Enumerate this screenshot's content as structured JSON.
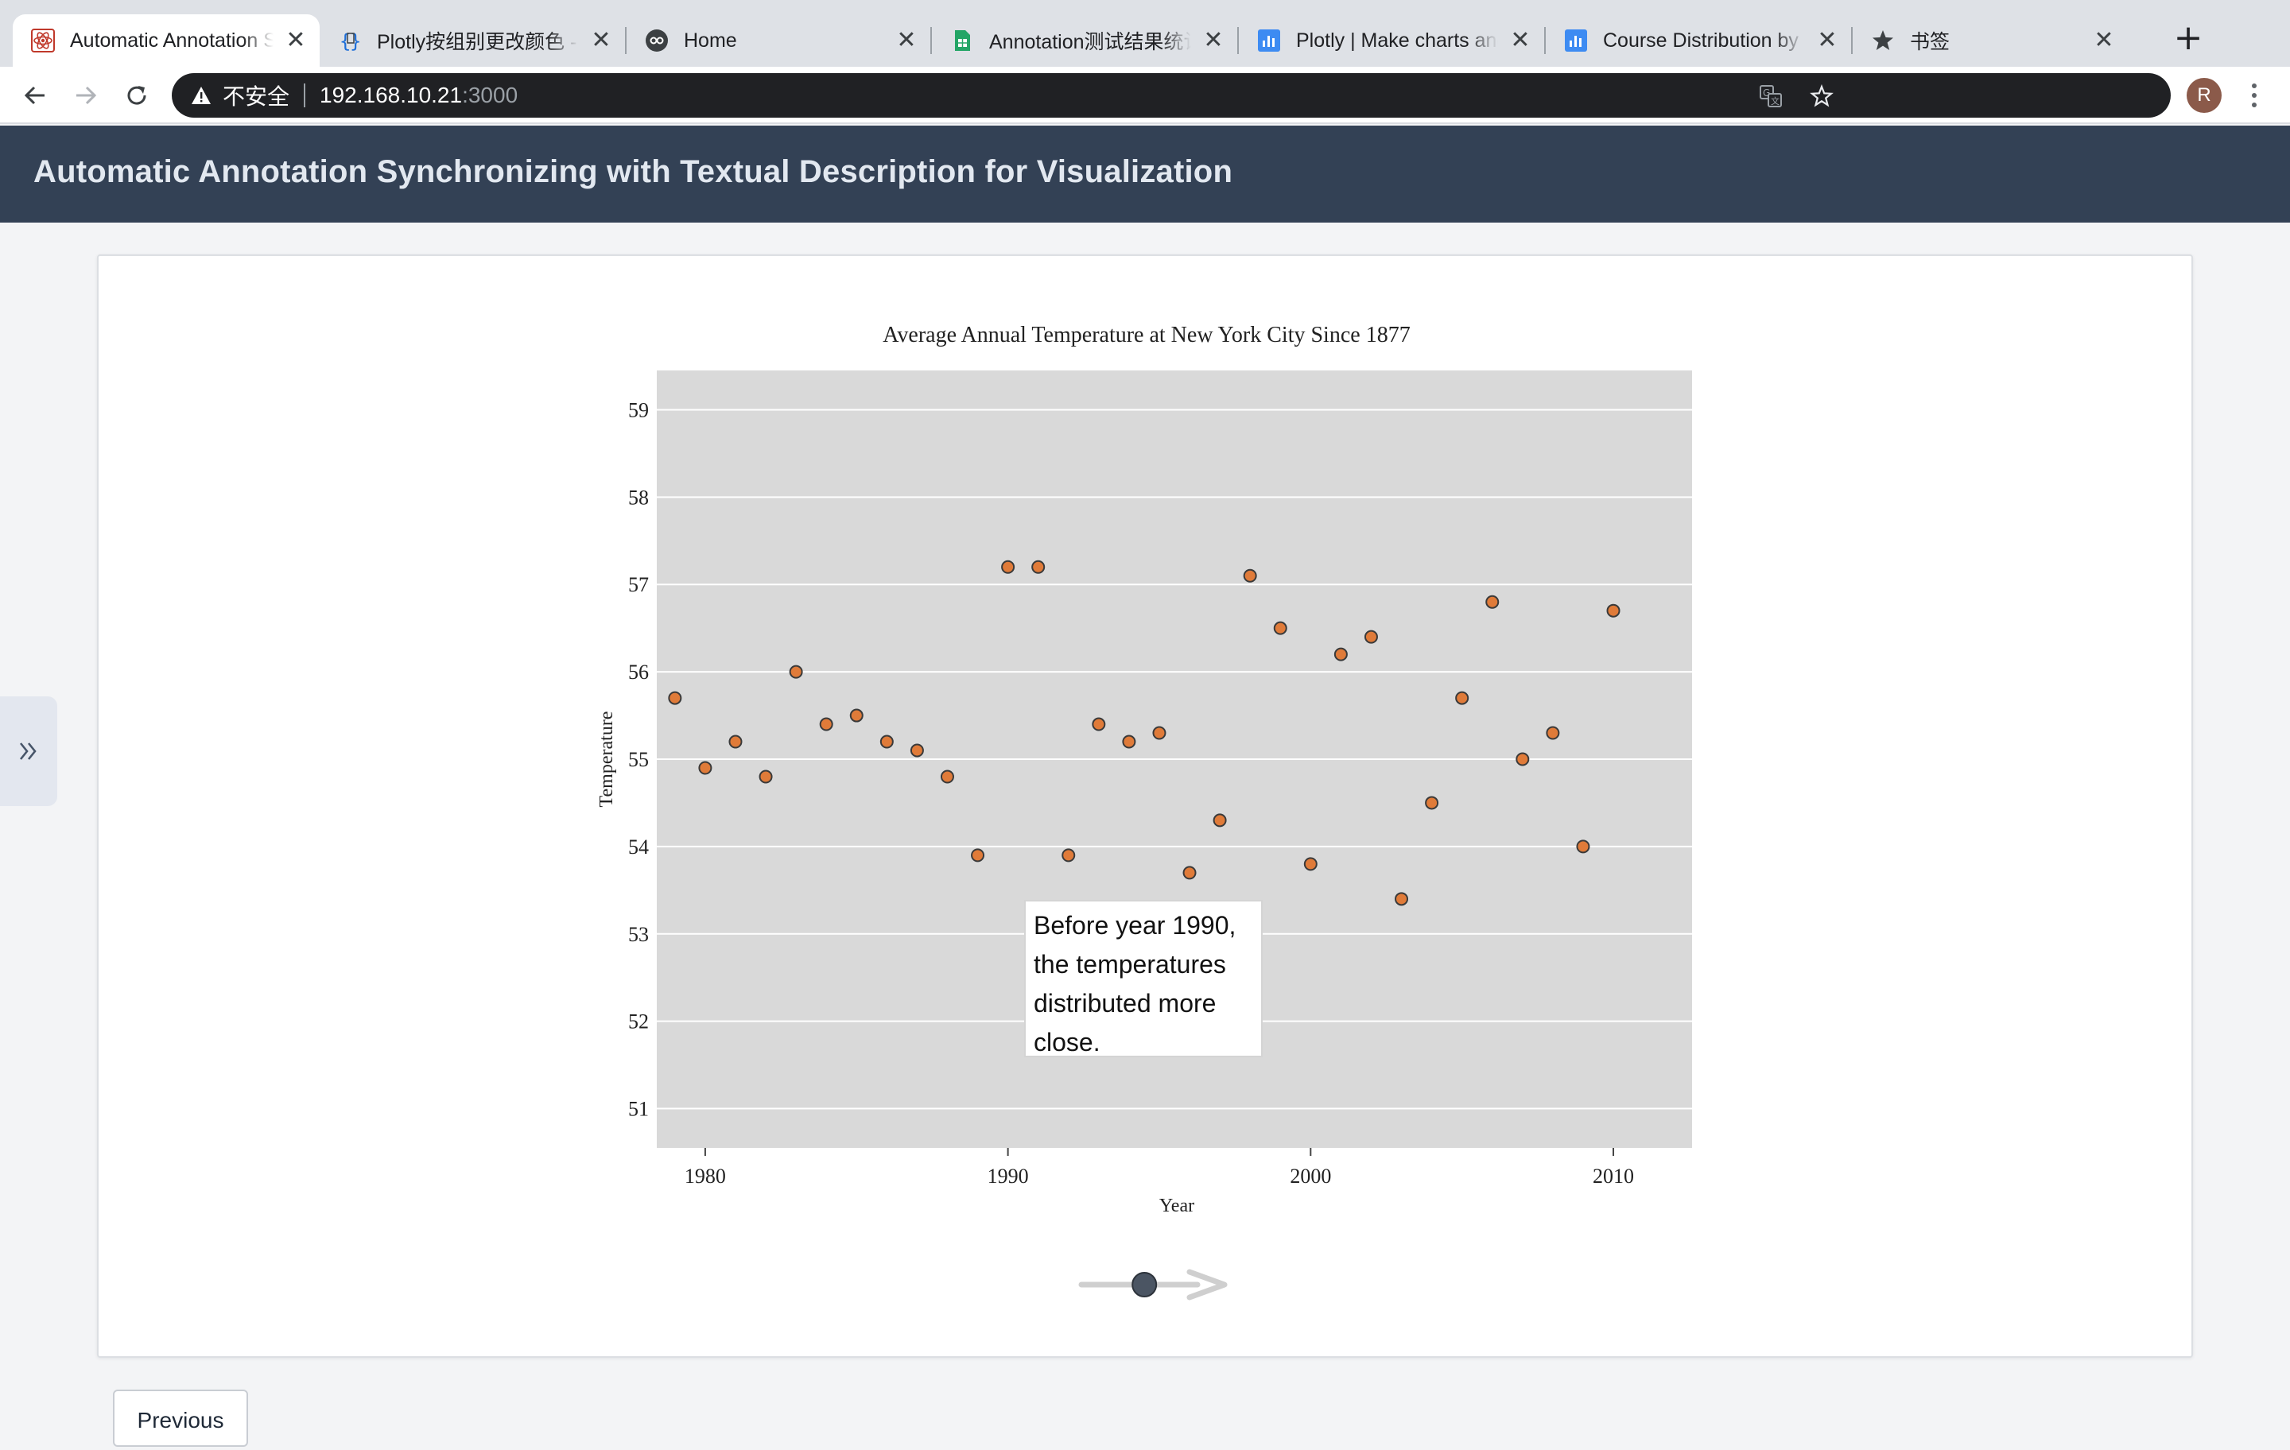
{
  "browser": {
    "tabs": [
      {
        "title": "Automatic Annotation Synchronizing",
        "active": true,
        "icon": "react-atom-icon"
      },
      {
        "title": "Plotly按组别更改颜色 - ",
        "active": false,
        "icon": "code-braces-icon"
      },
      {
        "title": "Home",
        "active": false,
        "icon": "observable-icon"
      },
      {
        "title": "Annotation测试结果统计",
        "active": false,
        "icon": "google-sheets-icon"
      },
      {
        "title": "Plotly | Make charts and",
        "active": false,
        "icon": "chart-studio-icon"
      },
      {
        "title": "Course Distribution by F",
        "active": false,
        "icon": "chart-studio-icon"
      },
      {
        "title": "书签",
        "active": false,
        "icon": "star-icon"
      }
    ],
    "close_glyph": "✕",
    "new_tab_glyph": "+",
    "address": {
      "insecure_label": "不安全",
      "host": "192.168.10.21",
      "port": ":3000"
    },
    "avatar_letter": "R",
    "colors": {
      "tabbar": "#dee1e6",
      "omnibox": "#202124"
    }
  },
  "app": {
    "title": "Automatic Annotation Synchronizing with Textual Description for Visualization",
    "header_color": "#334155",
    "previous_label": "Previous",
    "annotation_text": "Before year 1990, the temperatures distributed more close."
  },
  "chart_data": {
    "type": "scatter",
    "title": "Average Annual Temperature at New York City Since 1877",
    "xlabel": "Year",
    "ylabel": "Temperature",
    "xlim": [
      1978.4,
      2012.6
    ],
    "ylim": [
      50.55,
      59.45
    ],
    "x_ticks": [
      1980,
      1990,
      2000,
      2010
    ],
    "y_ticks": [
      51,
      52,
      53,
      54,
      55,
      56,
      57,
      58,
      59
    ],
    "grid": true,
    "legend": "none",
    "marker_color": "#e07b39",
    "plot_bg": "#d9d9d9",
    "x": [
      1979,
      1980,
      1981,
      1982,
      1983,
      1984,
      1985,
      1986,
      1987,
      1988,
      1989,
      1990,
      1991,
      1992,
      1993,
      1994,
      1995,
      1996,
      1997,
      1998,
      1999,
      2000,
      2001,
      2002,
      2003,
      2004,
      2005,
      2006,
      2007,
      2008,
      2009,
      2010
    ],
    "y": [
      55.7,
      54.9,
      55.2,
      54.8,
      56.0,
      55.4,
      55.5,
      55.2,
      55.1,
      54.8,
      53.9,
      57.2,
      57.2,
      53.9,
      55.4,
      55.2,
      55.3,
      53.7,
      54.3,
      57.1,
      56.5,
      53.8,
      56.2,
      56.4,
      53.4,
      54.5,
      55.7,
      56.8,
      55.0,
      55.3,
      54.0,
      56.7
    ]
  },
  "slider": {
    "value": 0.44
  }
}
